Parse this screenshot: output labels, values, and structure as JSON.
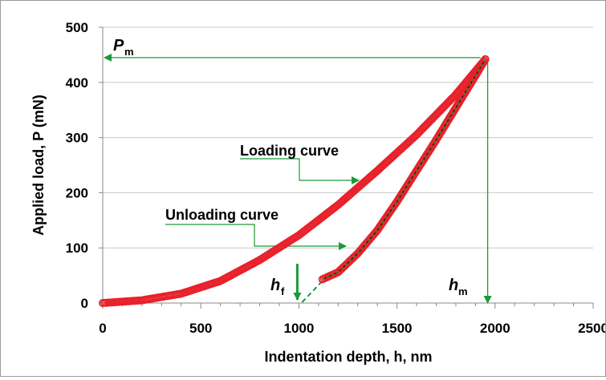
{
  "chart_data": {
    "type": "scatter",
    "xlabel": "Indentation depth, h, nm",
    "ylabel": "Applied load, P (mN)",
    "xlim": [
      0,
      2500
    ],
    "ylim": [
      0,
      500
    ],
    "x_ticks": [
      "0",
      "500",
      "1000",
      "1500",
      "2000",
      "2500"
    ],
    "y_ticks": [
      "0",
      "100",
      "200",
      "300",
      "400",
      "500"
    ],
    "grid": "horizontal",
    "marker_color": "#e8202a",
    "fit_line_color": "#2a8a2a",
    "annotation_color": "#1a9a3a",
    "series": [
      {
        "points": [
          [
            0,
            0
          ],
          [
            200,
            5
          ],
          [
            400,
            17
          ],
          [
            600,
            40
          ],
          [
            800,
            78
          ],
          [
            1000,
            123
          ],
          [
            1200,
            178
          ],
          [
            1400,
            240
          ],
          [
            1600,
            305
          ],
          [
            1800,
            378
          ],
          [
            1950,
            442
          ]
        ]
      },
      {
        "points": [
          [
            1950,
            442
          ],
          [
            1900,
            412
          ],
          [
            1800,
            354
          ],
          [
            1700,
            296
          ],
          [
            1600,
            240
          ],
          [
            1500,
            184
          ],
          [
            1400,
            132
          ],
          [
            1300,
            90
          ],
          [
            1200,
            56
          ],
          [
            1120,
            43
          ]
        ]
      }
    ],
    "annotations": {
      "loading": "Loading curve",
      "unloading": "Unloading curve",
      "p_symbol": "P",
      "p_sub": "m",
      "hm_symbol": "h",
      "hm_sub": "m",
      "hf_symbol": "h",
      "hf_sub": "f",
      "Pm_value": 442,
      "hm_value": 1950,
      "hf_value": 1000
    }
  }
}
